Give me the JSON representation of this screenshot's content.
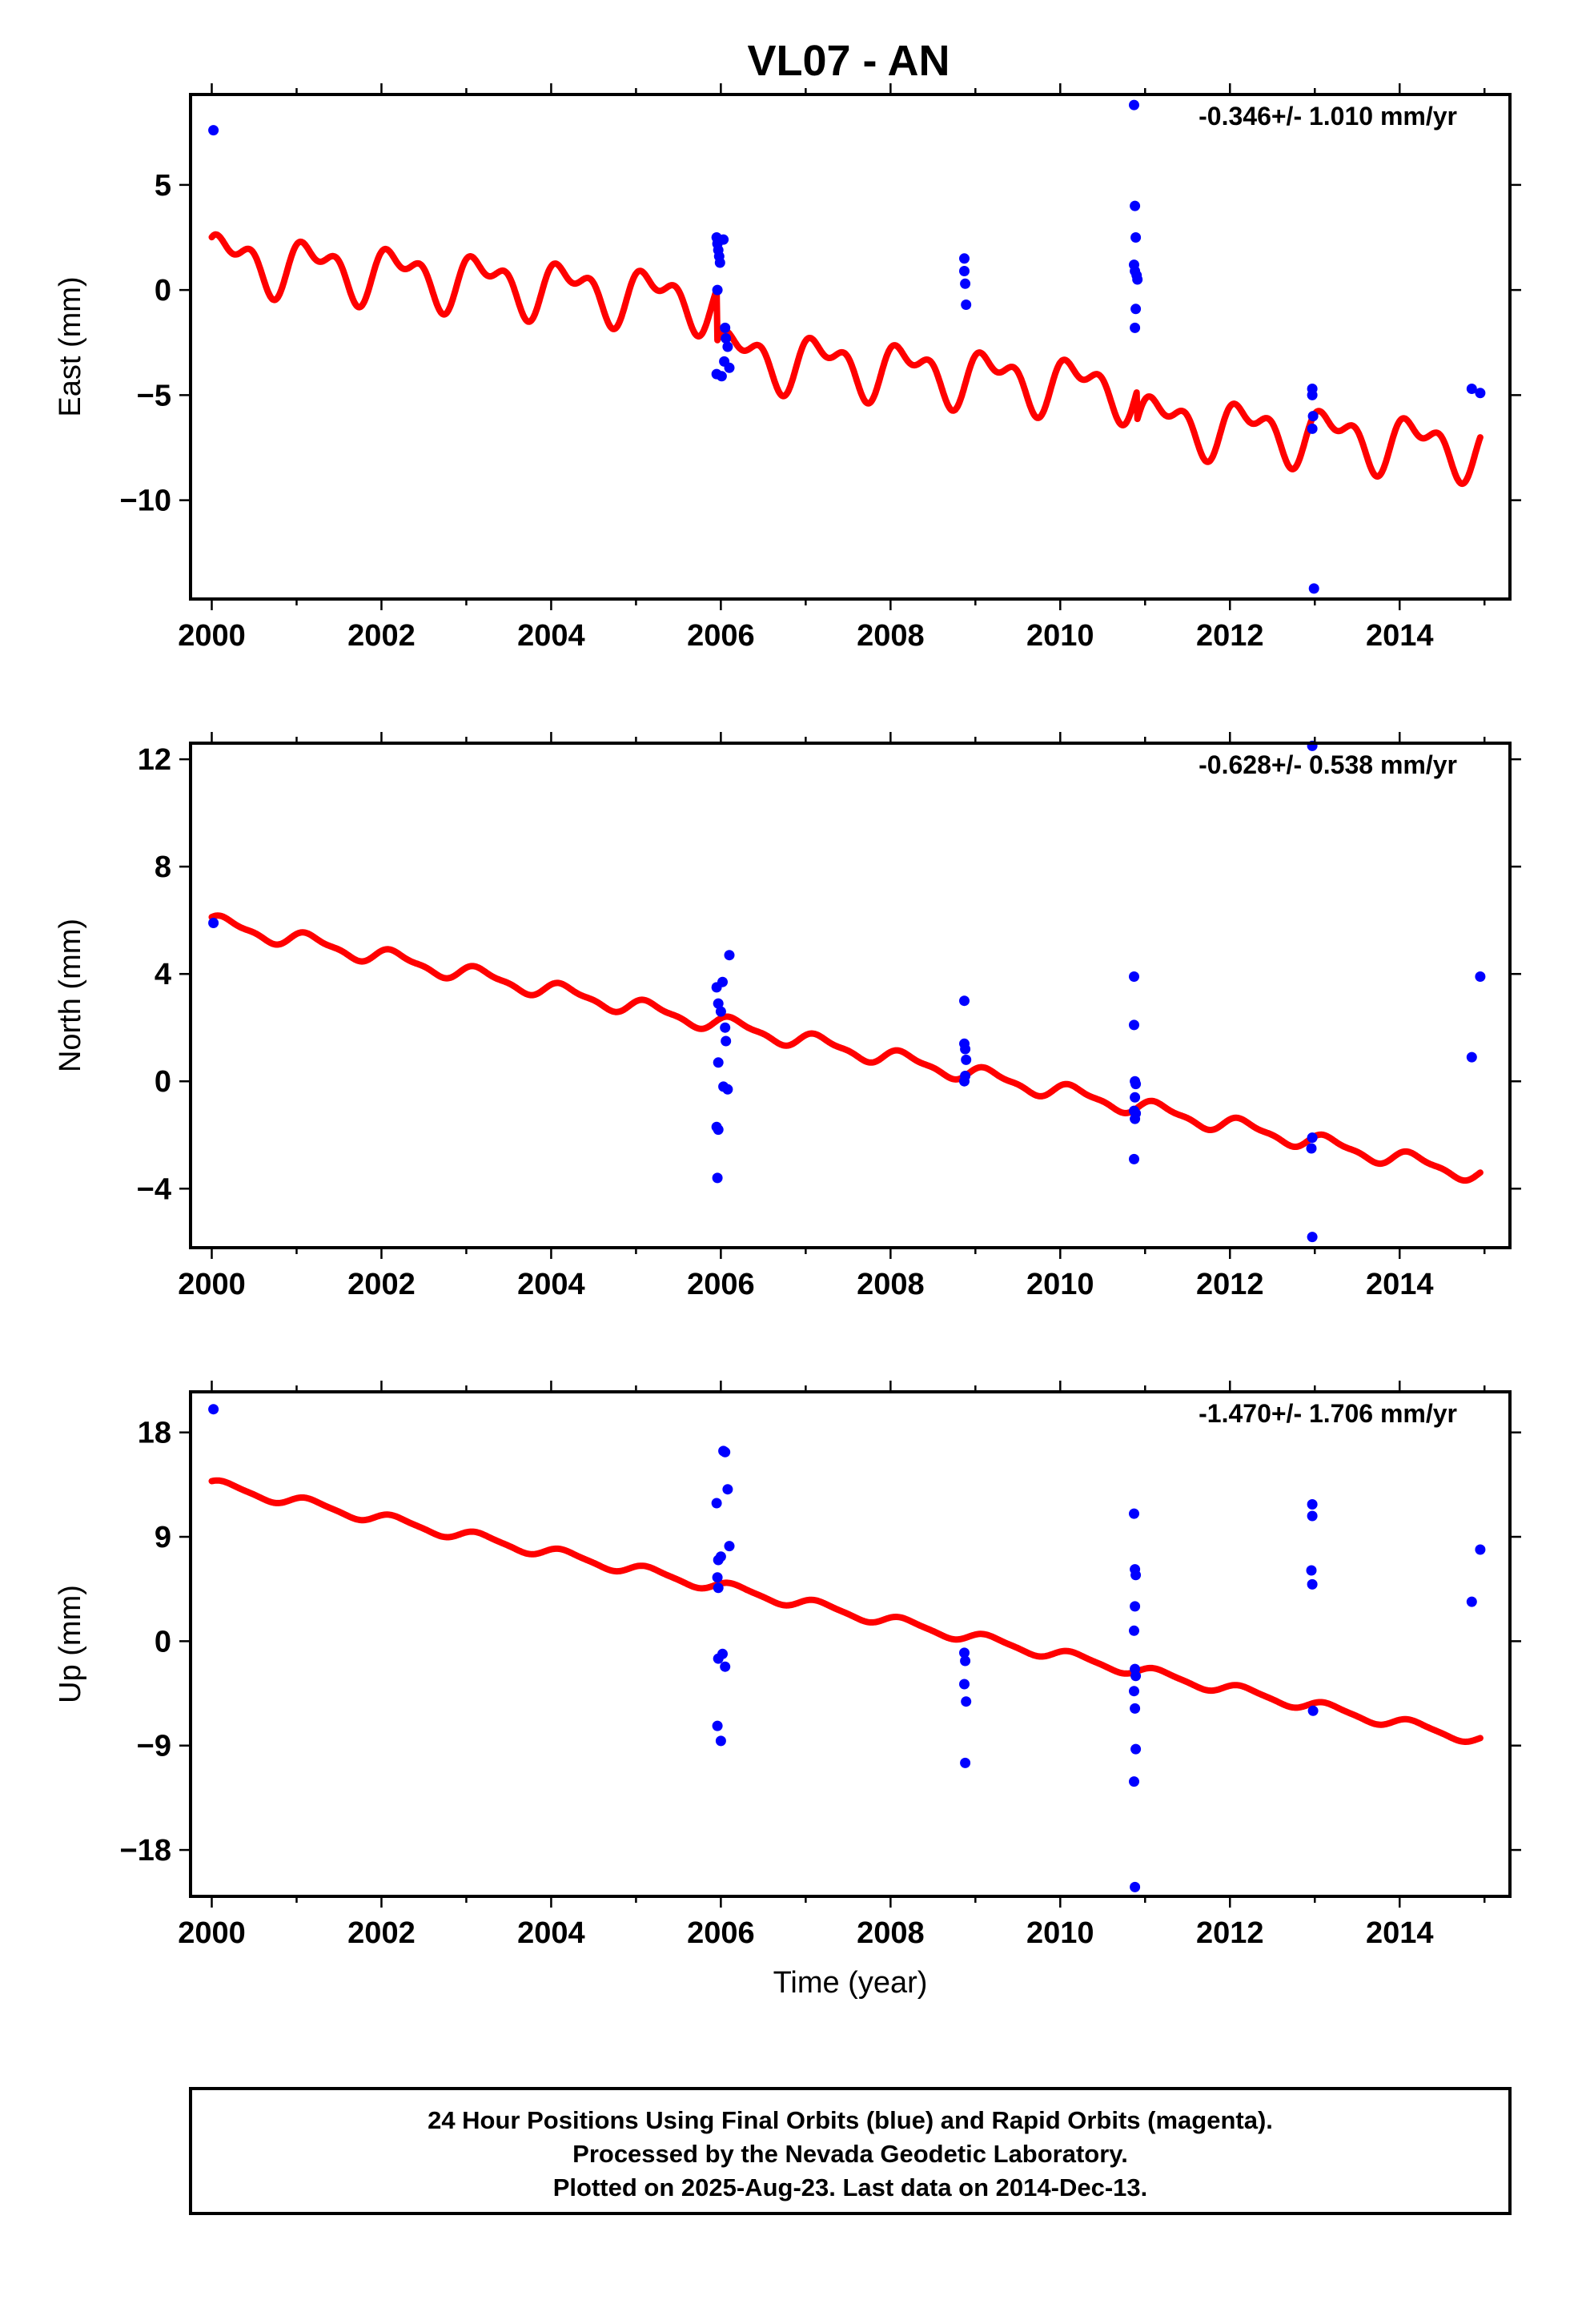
{
  "title": "VL07 - AN",
  "colors": {
    "final_orbits": "#0000ff",
    "model": "#ff0000",
    "frame": "#000000"
  },
  "chart_data": [
    {
      "type": "scatter",
      "ylabel": "East (mm)",
      "xlim": [
        1999.75,
        2015.3
      ],
      "ylim": [
        -14.7,
        9.3
      ],
      "xticks": [
        2000,
        2002,
        2004,
        2006,
        2008,
        2010,
        2012,
        2014
      ],
      "yticks": [
        5,
        0,
        -5,
        -10
      ],
      "ytick_labels": [
        "5",
        "0",
        "−5",
        "−10"
      ],
      "rate": "-0.346+/- 1.010 mm/yr",
      "model": {
        "start": 2000.0,
        "end": 2014.95,
        "offset0": 1.5,
        "trend": -0.346,
        "steps": [
          [
            2005.95,
            -2.5
          ],
          [
            2010.9,
            -1.4
          ]
        ],
        "annual": 1.05,
        "annual_phase": 0.3,
        "semiannual": 0.7,
        "semiannual_phase": 1.6
      },
      "points": [
        [
          2000.02,
          7.6
        ],
        [
          2005.95,
          2.5
        ],
        [
          2005.96,
          2.2
        ],
        [
          2005.97,
          1.9
        ],
        [
          2005.98,
          1.6
        ],
        [
          2005.99,
          1.3
        ],
        [
          2005.96,
          0.0
        ],
        [
          2005.95,
          -4.0
        ],
        [
          2006.01,
          -4.1
        ],
        [
          2006.03,
          2.4
        ],
        [
          2006.05,
          -1.8
        ],
        [
          2006.06,
          -2.3
        ],
        [
          2006.08,
          -2.7
        ],
        [
          2006.04,
          -3.4
        ],
        [
          2006.1,
          -3.7
        ],
        [
          2008.87,
          1.5
        ],
        [
          2008.87,
          0.9
        ],
        [
          2008.88,
          0.3
        ],
        [
          2008.89,
          -0.7
        ],
        [
          2010.87,
          8.8
        ],
        [
          2010.88,
          4.0
        ],
        [
          2010.89,
          2.5
        ],
        [
          2010.87,
          1.2
        ],
        [
          2010.88,
          0.9
        ],
        [
          2010.9,
          0.7
        ],
        [
          2010.91,
          0.5
        ],
        [
          2010.89,
          -0.9
        ],
        [
          2010.88,
          -1.8
        ],
        [
          2012.97,
          -4.7
        ],
        [
          2012.97,
          -5.0
        ],
        [
          2012.98,
          -6.0
        ],
        [
          2012.97,
          -6.6
        ],
        [
          2012.99,
          -14.2
        ],
        [
          2014.85,
          -4.7
        ],
        [
          2014.95,
          -4.9
        ]
      ]
    },
    {
      "type": "scatter",
      "ylabel": "North (mm)",
      "xlim": [
        1999.75,
        2015.3
      ],
      "ylim": [
        -6.2,
        12.6
      ],
      "xticks": [
        2000,
        2002,
        2004,
        2006,
        2008,
        2010,
        2012,
        2014
      ],
      "yticks": [
        12,
        8,
        4,
        0,
        -4
      ],
      "ytick_labels": [
        "12",
        "8",
        "4",
        "0",
        "−4"
      ],
      "rate": "-0.628+/- 0.538 mm/yr",
      "model": {
        "start": 2000.0,
        "end": 2014.95,
        "offset0": 5.9,
        "trend": -0.628,
        "steps": [],
        "annual": 0.28,
        "annual_phase": 0.5,
        "semiannual": 0.1,
        "semiannual_phase": 1.0
      },
      "points": [
        [
          2000.02,
          5.9
        ],
        [
          2005.95,
          3.5
        ],
        [
          2005.97,
          2.9
        ],
        [
          2006.0,
          2.6
        ],
        [
          2006.02,
          3.7
        ],
        [
          2006.05,
          2.0
        ],
        [
          2006.06,
          1.5
        ],
        [
          2006.1,
          4.7
        ],
        [
          2005.97,
          0.7
        ],
        [
          2006.03,
          -0.2
        ],
        [
          2006.08,
          -0.3
        ],
        [
          2005.95,
          -1.7
        ],
        [
          2005.97,
          -1.8
        ],
        [
          2005.96,
          -3.6
        ],
        [
          2008.87,
          3.0
        ],
        [
          2008.87,
          1.4
        ],
        [
          2008.88,
          1.2
        ],
        [
          2008.89,
          0.8
        ],
        [
          2008.88,
          0.2
        ],
        [
          2008.87,
          0.0
        ],
        [
          2010.87,
          3.9
        ],
        [
          2010.87,
          2.1
        ],
        [
          2010.88,
          0.0
        ],
        [
          2010.89,
          -0.1
        ],
        [
          2010.88,
          -0.6
        ],
        [
          2010.87,
          -1.1
        ],
        [
          2010.88,
          -1.4
        ],
        [
          2010.89,
          -1.2
        ],
        [
          2010.87,
          -2.9
        ],
        [
          2012.97,
          12.5
        ],
        [
          2012.97,
          -2.1
        ],
        [
          2012.96,
          -2.5
        ],
        [
          2012.97,
          -5.8
        ],
        [
          2014.85,
          0.9
        ],
        [
          2014.95,
          3.9
        ]
      ]
    },
    {
      "type": "scatter",
      "ylabel": "Up (mm)",
      "xlim": [
        1999.75,
        2015.3
      ],
      "ylim": [
        -22.0,
        21.5
      ],
      "xticks": [
        2000,
        2002,
        2004,
        2006,
        2008,
        2010,
        2012,
        2014
      ],
      "yticks": [
        18,
        9,
        0,
        -9,
        -18
      ],
      "ytick_labels": [
        "18",
        "9",
        "0",
        "−9",
        "−18"
      ],
      "rate": "-1.470+/- 1.706 mm/yr",
      "xlabel": "Time (year)",
      "model": {
        "start": 2000.0,
        "end": 2014.95,
        "offset0": 13.5,
        "trend": -1.47,
        "steps": [],
        "annual": 0.45,
        "annual_phase": 0.5,
        "semiannual": 0.1,
        "semiannual_phase": 1.0
      },
      "points": [
        [
          2000.02,
          20.0
        ],
        [
          2005.95,
          11.9
        ],
        [
          2005.97,
          7.0
        ],
        [
          2006.0,
          7.3
        ],
        [
          2006.03,
          16.4
        ],
        [
          2006.05,
          16.3
        ],
        [
          2006.08,
          13.1
        ],
        [
          2006.1,
          8.2
        ],
        [
          2005.96,
          5.5
        ],
        [
          2005.97,
          4.6
        ],
        [
          2005.97,
          -1.5
        ],
        [
          2006.02,
          -1.1
        ],
        [
          2006.05,
          -2.2
        ],
        [
          2005.96,
          -7.3
        ],
        [
          2006.0,
          -8.6
        ],
        [
          2008.87,
          -1.0
        ],
        [
          2008.88,
          -1.7
        ],
        [
          2008.87,
          -3.7
        ],
        [
          2008.89,
          -5.2
        ],
        [
          2008.88,
          -10.5
        ],
        [
          2010.87,
          11.0
        ],
        [
          2010.88,
          6.2
        ],
        [
          2010.89,
          5.7
        ],
        [
          2010.88,
          3.0
        ],
        [
          2010.87,
          0.9
        ],
        [
          2010.88,
          -2.4
        ],
        [
          2010.89,
          -3.0
        ],
        [
          2010.87,
          -4.3
        ],
        [
          2010.88,
          -5.8
        ],
        [
          2010.89,
          -9.3
        ],
        [
          2010.87,
          -12.1
        ],
        [
          2010.88,
          -21.2
        ],
        [
          2012.97,
          11.8
        ],
        [
          2012.97,
          10.8
        ],
        [
          2012.96,
          6.1
        ],
        [
          2012.97,
          4.9
        ],
        [
          2012.98,
          -6.0
        ],
        [
          2014.85,
          3.4
        ],
        [
          2014.95,
          7.9
        ]
      ]
    }
  ],
  "footer": {
    "line1": "24 Hour Positions Using Final Orbits (blue) and Rapid Orbits (magenta).",
    "line2": "Processed by the Nevada Geodetic Laboratory.",
    "line3": "Plotted on 2025-Aug-23. Last data on 2014-Dec-13."
  }
}
